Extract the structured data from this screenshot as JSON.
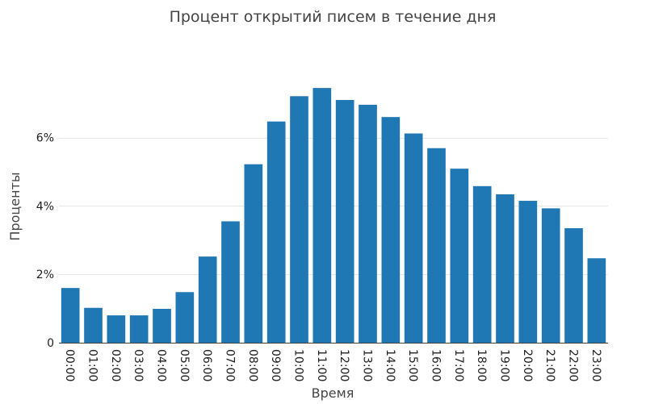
{
  "chart_data": {
    "type": "bar",
    "title": "Процент открытий писем в течение дня",
    "xlabel": "Время",
    "ylabel": "Проценты",
    "categories": [
      "00:00",
      "01:00",
      "02:00",
      "03:00",
      "04:00",
      "05:00",
      "06:00",
      "07:00",
      "08:00",
      "09:00",
      "10:00",
      "11:00",
      "12:00",
      "13:00",
      "14:00",
      "15:00",
      "16:00",
      "17:00",
      "18:00",
      "19:00",
      "20:00",
      "21:00",
      "22:00",
      "23:00"
    ],
    "values": [
      1.6,
      1.02,
      0.8,
      0.8,
      0.99,
      1.48,
      2.52,
      3.55,
      5.22,
      6.47,
      7.21,
      7.45,
      7.1,
      6.96,
      6.6,
      6.12,
      5.69,
      5.09,
      4.58,
      4.34,
      4.15,
      3.93,
      3.35,
      2.47
    ],
    "yticks": [
      {
        "value": 0,
        "label": "0"
      },
      {
        "value": 2,
        "label": "2%"
      },
      {
        "value": 4,
        "label": "4%"
      },
      {
        "value": 6,
        "label": "6%"
      }
    ],
    "ylim": [
      0,
      8.3
    ],
    "grid": true,
    "color": "#1f77b4"
  }
}
